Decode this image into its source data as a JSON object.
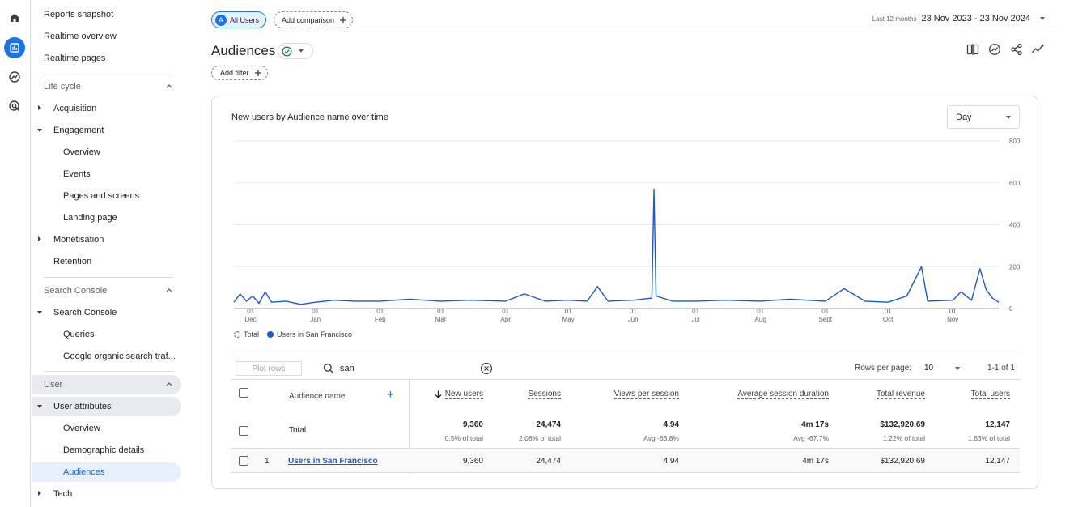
{
  "rail": {
    "icons": [
      "home-icon",
      "reports-icon",
      "explore-icon",
      "advertising-icon"
    ]
  },
  "sidebar": {
    "top_items": [
      "Reports snapshot",
      "Realtime overview",
      "Realtime pages"
    ],
    "life_cycle": {
      "header": "Life cycle",
      "acquisition": "Acquisition",
      "engagement": "Engagement",
      "engagement_items": [
        "Overview",
        "Events",
        "Pages and screens",
        "Landing page"
      ],
      "monetisation": "Monetisation",
      "retention": "Retention"
    },
    "search_console": {
      "header": "Search Console",
      "group": "Search Console",
      "items": [
        "Queries",
        "Google organic search traf..."
      ]
    },
    "user": {
      "header": "User",
      "group": "User attributes",
      "items": [
        "Overview",
        "Demographic details",
        "Audiences"
      ],
      "tech": "Tech"
    }
  },
  "topbar": {
    "segment_letter": "A",
    "segment_label": "All Users",
    "add_comparison": "Add comparison",
    "date_label": "Last 12 months",
    "date_range": "23 Nov 2023 - 23 Nov 2024"
  },
  "page": {
    "title": "Audiences",
    "add_filter": "Add filter"
  },
  "chart": {
    "title": "New users by Audience name over time",
    "granularity": "Day",
    "legend": [
      "Total",
      "Users in San Francisco"
    ],
    "colors": {
      "line": "#1a57d6",
      "grid": "#e8eaed"
    }
  },
  "chart_data": {
    "type": "line",
    "x_ticks": [
      {
        "day": "01",
        "month": "Dec"
      },
      {
        "day": "01",
        "month": "Jan"
      },
      {
        "day": "01",
        "month": "Feb"
      },
      {
        "day": "01",
        "month": "Mar"
      },
      {
        "day": "01",
        "month": "Apr"
      },
      {
        "day": "01",
        "month": "May"
      },
      {
        "day": "01",
        "month": "Jun"
      },
      {
        "day": "01",
        "month": "Jul"
      },
      {
        "day": "01",
        "month": "Aug"
      },
      {
        "day": "01",
        "month": "Sept"
      },
      {
        "day": "01",
        "month": "Oct"
      },
      {
        "day": "01",
        "month": "Nov"
      }
    ],
    "y_ticks": [
      "800",
      "600",
      "400",
      "200",
      "0"
    ],
    "ylim": [
      0,
      800
    ],
    "series": [
      {
        "name": "Users in San Francisco",
        "description_points": [
          [
            "2023-11-23",
            30
          ],
          [
            "2023-11-26",
            70
          ],
          [
            "2023-11-29",
            35
          ],
          [
            "2023-12-02",
            60
          ],
          [
            "2023-12-05",
            25
          ],
          [
            "2023-12-08",
            80
          ],
          [
            "2023-12-11",
            30
          ],
          [
            "2023-12-18",
            35
          ],
          [
            "2023-12-25",
            20
          ],
          [
            "2024-01-01",
            30
          ],
          [
            "2024-01-10",
            40
          ],
          [
            "2024-01-20",
            35
          ],
          [
            "2024-02-01",
            35
          ],
          [
            "2024-02-15",
            45
          ],
          [
            "2024-03-01",
            35
          ],
          [
            "2024-03-15",
            40
          ],
          [
            "2024-04-01",
            35
          ],
          [
            "2024-04-10",
            70
          ],
          [
            "2024-04-20",
            35
          ],
          [
            "2024-05-01",
            40
          ],
          [
            "2024-05-10",
            35
          ],
          [
            "2024-05-15",
            105
          ],
          [
            "2024-05-20",
            35
          ],
          [
            "2024-06-01",
            40
          ],
          [
            "2024-06-10",
            50
          ],
          [
            "2024-06-11",
            570
          ],
          [
            "2024-06-12",
            60
          ],
          [
            "2024-06-20",
            35
          ],
          [
            "2024-07-01",
            35
          ],
          [
            "2024-07-15",
            40
          ],
          [
            "2024-08-01",
            35
          ],
          [
            "2024-08-15",
            45
          ],
          [
            "2024-09-01",
            35
          ],
          [
            "2024-09-10",
            95
          ],
          [
            "2024-09-20",
            35
          ],
          [
            "2024-10-01",
            30
          ],
          [
            "2024-10-10",
            60
          ],
          [
            "2024-10-17",
            200
          ],
          [
            "2024-10-20",
            35
          ],
          [
            "2024-11-01",
            40
          ],
          [
            "2024-11-05",
            80
          ],
          [
            "2024-11-10",
            40
          ],
          [
            "2024-11-14",
            190
          ],
          [
            "2024-11-17",
            90
          ],
          [
            "2024-11-20",
            50
          ],
          [
            "2024-11-23",
            30
          ]
        ]
      }
    ]
  },
  "table_toolbar": {
    "plot_rows": "Plot rows",
    "search_value": "san",
    "rows_per_page_label": "Rows per page:",
    "rows_per_page": "10",
    "pager": "1-1 of 1"
  },
  "table": {
    "headers": {
      "audience_name": "Audience name",
      "new_users": "New users",
      "sessions": "Sessions",
      "views_per_session": "Views per session",
      "avg_duration": "Average session duration",
      "total_revenue": "Total revenue",
      "total_users": "Total users"
    },
    "total": {
      "label": "Total",
      "new_users": "9,360",
      "new_users_sub": "0.5% of total",
      "sessions": "24,474",
      "sessions_sub": "2.08% of total",
      "views": "4.94",
      "views_sub": "Avg -63.8%",
      "duration": "4m 17s",
      "duration_sub": "Avg -67.7%",
      "revenue": "$132,920.69",
      "revenue_sub": "1.22% of total",
      "users": "12,147",
      "users_sub": "1.63% of total"
    },
    "rows": [
      {
        "index": "1",
        "name": "Users in San Francisco",
        "new_users": "9,360",
        "sessions": "24,474",
        "views": "4.94",
        "duration": "4m 17s",
        "revenue": "$132,920.69",
        "users": "12,147"
      }
    ]
  }
}
